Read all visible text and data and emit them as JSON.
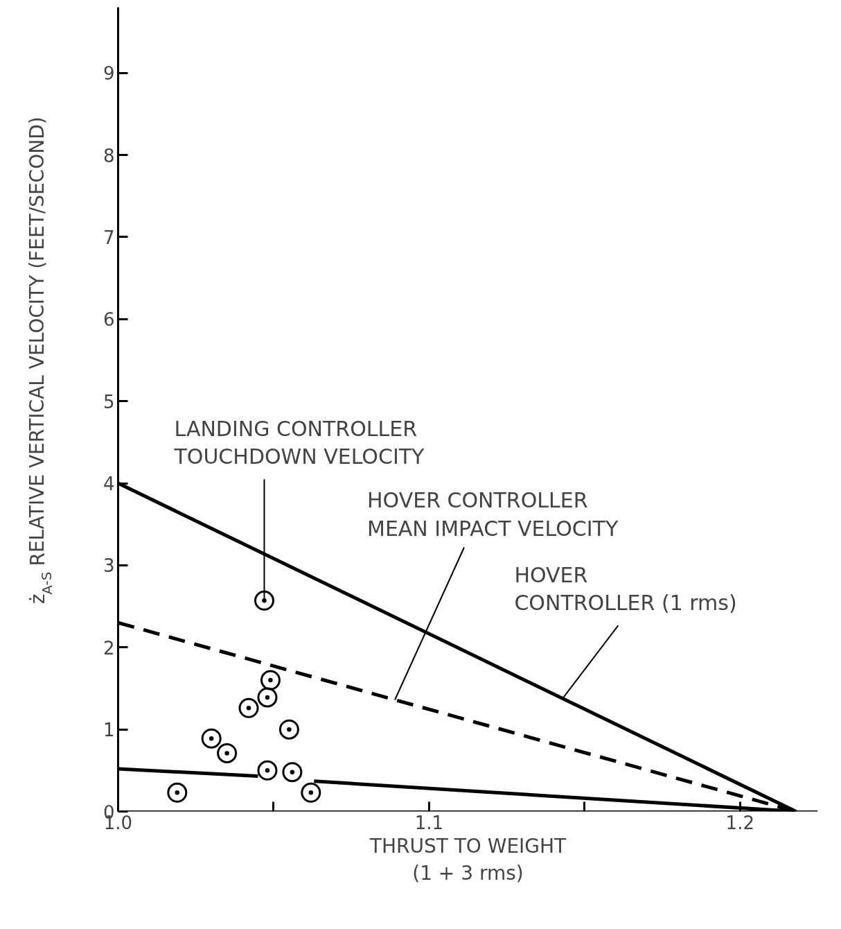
{
  "chart_data": {
    "type": "line",
    "xlabel": "THRUST TO WEIGHT\n(1 + 3 rms)",
    "ylabel": "ż$_{A-S}$ RELATIVE VERTICAL VELOCITY (FEET/SECOND)",
    "xlim": [
      1.0,
      1.225
    ],
    "ylim": [
      0,
      9.8
    ],
    "xticks": [
      {
        "value": 1.0,
        "label": "1.0"
      },
      {
        "value": 1.05,
        "label": null
      },
      1.1,
      {
        "value": 1.15,
        "label": null
      },
      1.2
    ],
    "yticks": [
      0,
      1,
      2,
      3,
      4,
      5,
      6,
      7,
      8,
      9
    ],
    "series": [
      {
        "color": "#000000",
        "line_style": "solid",
        "marker": "none",
        "x": [
          1.0,
          1.218
        ],
        "values": [
          4.0,
          0.0
        ]
      },
      {
        "color": "#000000",
        "line_style": "dashed",
        "marker": "none",
        "x": [
          1.0,
          1.218
        ],
        "values": [
          2.3,
          0.0
        ]
      },
      {
        "color": "#000000",
        "line_style": "solid",
        "marker": "none",
        "x": [
          1.0,
          1.045,
          1.054,
          1.063,
          1.218
        ],
        "values": [
          0.52,
          0.43,
          null,
          0.37,
          0.0
        ]
      },
      {
        "type": "scatter",
        "color": "#000000",
        "marker": "circle",
        "x": [
          1.019,
          1.03,
          1.035,
          1.042,
          1.047,
          1.048,
          1.049,
          1.048,
          1.055,
          1.056,
          1.062
        ],
        "values": [
          0.23,
          0.89,
          0.71,
          1.26,
          2.57,
          1.39,
          1.6,
          0.5,
          1.0,
          0.48,
          0.23
        ]
      }
    ],
    "annotations": [
      {
        "text": "LANDING CONTROLLER\nTOUCHDOWN VELOCITY",
        "x": 1.047,
        "y": 2.57
      },
      {
        "text": "HOVER CONTROLLER\nMEAN IMPACT VELOCITY",
        "x": 1.089,
        "y": 1.36
      },
      {
        "text": "HOVER\nCONTROLLER (1 rms)",
        "x": 1.143,
        "y": 1.38
      }
    ]
  }
}
